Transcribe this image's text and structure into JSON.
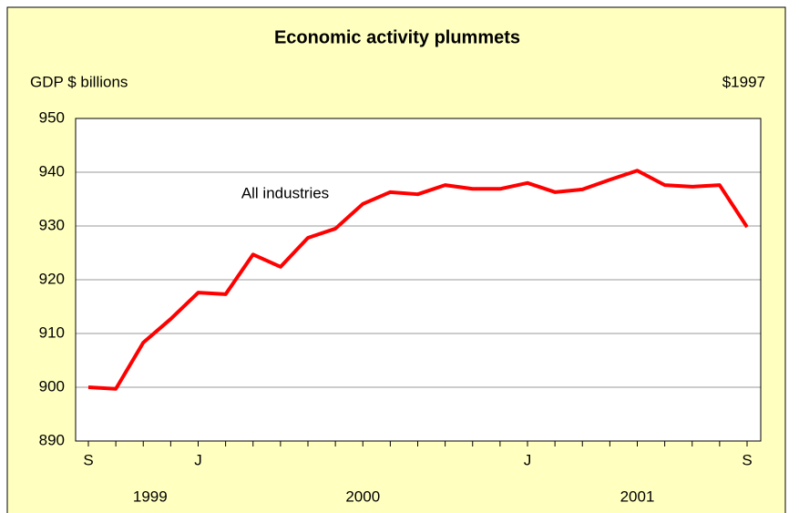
{
  "chart_data": {
    "type": "line",
    "title": "Economic activity plummets",
    "y_axis_label": "GDP $ billions",
    "unit_note": "$1997",
    "annotation": "All industries",
    "categories": [
      "S",
      null,
      null,
      null,
      "J",
      null,
      null,
      null,
      null,
      null,
      null,
      null,
      null,
      null,
      null,
      null,
      "J",
      null,
      null,
      null,
      null,
      null,
      null,
      null,
      "S"
    ],
    "year_labels": [
      "1999",
      "2000",
      "2001"
    ],
    "series": [
      {
        "name": "All industries",
        "color": "#ff0000",
        "values": [
          900.0,
          899.7,
          908.3,
          912.7,
          917.6,
          917.3,
          924.7,
          922.4,
          927.8,
          929.5,
          934.1,
          936.3,
          935.9,
          937.6,
          936.9,
          936.9,
          938.0,
          936.3,
          936.8,
          938.6,
          940.3,
          937.6,
          937.3,
          937.6,
          929.8
        ]
      }
    ],
    "ylim": [
      890,
      950
    ],
    "yticks": [
      890,
      900,
      910,
      920,
      930,
      940,
      950
    ],
    "grid": true,
    "legend": false,
    "background": "#ffffc0"
  }
}
